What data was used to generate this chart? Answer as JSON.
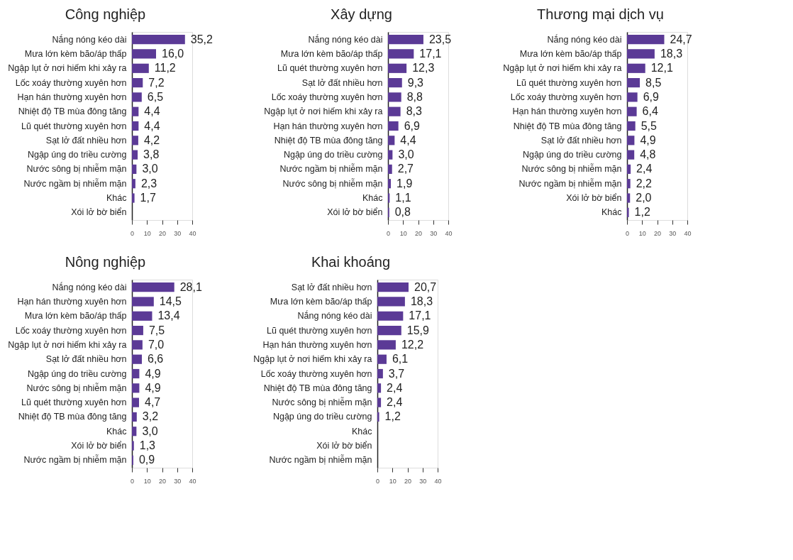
{
  "chart_data": [
    {
      "type": "bar",
      "orientation": "horizontal",
      "title": "Công nghiệp",
      "color": "#5b3a96",
      "xlim": [
        0,
        40
      ],
      "xticks": [
        0,
        10,
        20,
        30,
        40
      ],
      "grid": false,
      "categories": [
        "Nắng nóng kéo dài",
        "Mưa lớn kèm bão/áp thấp",
        "Ngập lụt ở nơi hiếm khi xảy ra",
        "Lốc xoáy thường xuyên hơn",
        "Hạn hán thường xuyên hơn",
        "Nhiệt độ TB mùa đông tăng",
        "Lũ quét thường xuyên hơn",
        "Sạt lở đất nhiều hơn",
        "Ngập úng do triều cường",
        "Nước sông bị nhiễm mặn",
        "Nước ngầm bị nhiễm mặn",
        "Khác",
        "Xói lở bờ biển"
      ],
      "values": [
        35.2,
        16.0,
        11.2,
        7.2,
        6.5,
        4.4,
        4.4,
        4.2,
        3.8,
        3.0,
        2.3,
        1.7,
        null
      ],
      "value_labels": [
        "35,2",
        "16,0",
        "11,2",
        "7,2",
        "6,5",
        "4,4",
        "4,4",
        "4,2",
        "3,8",
        "3,0",
        "2,3",
        "1,7",
        null
      ]
    },
    {
      "type": "bar",
      "orientation": "horizontal",
      "title": "Xây dựng",
      "color": "#5b3a96",
      "xlim": [
        0,
        40
      ],
      "xticks": [
        0,
        10,
        20,
        30,
        40
      ],
      "grid": false,
      "categories": [
        "Nắng nóng kéo dài",
        "Mưa lớn kèm bão/áp thấp",
        "Lũ quét thường xuyên hơn",
        "Sạt lở đất nhiều hơn",
        "Lốc xoáy thường xuyên hơn",
        "Ngập lụt ở nơi hiếm khi xảy ra",
        "Hạn hán thường xuyên hơn",
        "Nhiệt độ TB mùa đông tăng",
        "Ngập úng do triều cường",
        "Nước ngầm bị nhiễm mặn",
        "Nước sông bị nhiễm mặn",
        "Khác",
        "Xói lở bờ biển"
      ],
      "values": [
        23.5,
        17.1,
        12.3,
        9.3,
        8.8,
        8.3,
        6.9,
        4.4,
        3.0,
        2.7,
        1.9,
        1.1,
        0.8
      ],
      "value_labels": [
        "23,5",
        "17,1",
        "12,3",
        "9,3",
        "8,8",
        "8,3",
        "6,9",
        "4,4",
        "3,0",
        "2,7",
        "1,9",
        "1,1",
        "0,8"
      ]
    },
    {
      "type": "bar",
      "orientation": "horizontal",
      "title": "Thương mại dịch vụ",
      "color": "#5b3a96",
      "xlim": [
        0,
        40
      ],
      "xticks": [
        0,
        10,
        20,
        30,
        40
      ],
      "grid": false,
      "categories": [
        "Nắng nóng kéo dài",
        "Mưa lớn kèm bão/áp thấp",
        "Ngập lụt ở nơi hiếm khi xảy ra",
        "Lũ quét thường xuyên hơn",
        "Lốc xoáy thường xuyên hơn",
        "Hạn hán thường xuyên hơn",
        "Nhiệt độ TB mùa đông tăng",
        "Sạt lở đất nhiều hơn",
        "Ngập úng do triều cường",
        "Nước sông bị nhiễm mặn",
        "Nước ngầm bị nhiễm mặn",
        "Xói lở bờ biển",
        "Khác"
      ],
      "values": [
        24.7,
        18.3,
        12.1,
        8.5,
        6.9,
        6.4,
        5.5,
        4.9,
        4.8,
        2.4,
        2.2,
        2.0,
        1.2
      ],
      "value_labels": [
        "24,7",
        "18,3",
        "12,1",
        "8,5",
        "6,9",
        "6,4",
        "5,5",
        "4,9",
        "4,8",
        "2,4",
        "2,2",
        "2,0",
        "1,2"
      ]
    },
    {
      "type": "bar",
      "orientation": "horizontal",
      "title": "Nông nghiệp",
      "color": "#5b3a96",
      "xlim": [
        0,
        40
      ],
      "xticks": [
        0,
        10,
        20,
        30,
        40
      ],
      "grid": false,
      "categories": [
        "Nắng nóng kéo dài",
        "Hạn hán thường xuyên hơn",
        "Mưa lớn kèm bão/áp thấp",
        "Lốc xoáy thường xuyên hơn",
        "Ngập lụt ở nơi hiếm khi xảy ra",
        "Sạt lở đất nhiều hơn",
        "Ngập úng do triều cường",
        "Nước sông bị nhiễm mặn",
        "Lũ quét thường xuyên hơn",
        "Nhiệt độ TB mùa đông tăng",
        "Khác",
        "Xói lở bờ biển",
        "Nước ngầm bị nhiễm mặn"
      ],
      "values": [
        28.1,
        14.5,
        13.4,
        7.5,
        7.0,
        6.6,
        4.9,
        4.9,
        4.7,
        3.2,
        3.0,
        1.3,
        0.9
      ],
      "value_labels": [
        "28,1",
        "14,5",
        "13,4",
        "7,5",
        "7,0",
        "6,6",
        "4,9",
        "4,9",
        "4,7",
        "3,2",
        "3,0",
        "1,3",
        "0,9"
      ]
    },
    {
      "type": "bar",
      "orientation": "horizontal",
      "title": "Khai khoáng",
      "color": "#5b3a96",
      "xlim": [
        0,
        40
      ],
      "xticks": [
        0,
        10,
        20,
        30,
        40
      ],
      "grid": false,
      "categories": [
        "Sạt lở đất nhiều hơn",
        "Mưa lớn kèm bão/áp thấp",
        "Nắng nóng kéo dài",
        "Lũ quét thường xuyên hơn",
        "Hạn hán thường xuyên hơn",
        "Ngập lụt ở nơi hiếm khi xảy ra",
        "Lốc xoáy thường xuyên hơn",
        "Nhiệt độ TB mùa đông tăng",
        "Nước sông bị nhiễm mặn",
        "Ngập úng do triều cường",
        "Khác",
        "Xói lở bờ biển",
        "Nước ngầm bị nhiễm mặn"
      ],
      "values": [
        20.7,
        18.3,
        17.1,
        15.9,
        12.2,
        6.1,
        3.7,
        2.4,
        2.4,
        1.2,
        null,
        null,
        null
      ],
      "value_labels": [
        "20,7",
        "18,3",
        "17,1",
        "15,9",
        "12,2",
        "6,1",
        "3,7",
        "2,4",
        "2,4",
        "1,2",
        null,
        null,
        null
      ]
    }
  ]
}
